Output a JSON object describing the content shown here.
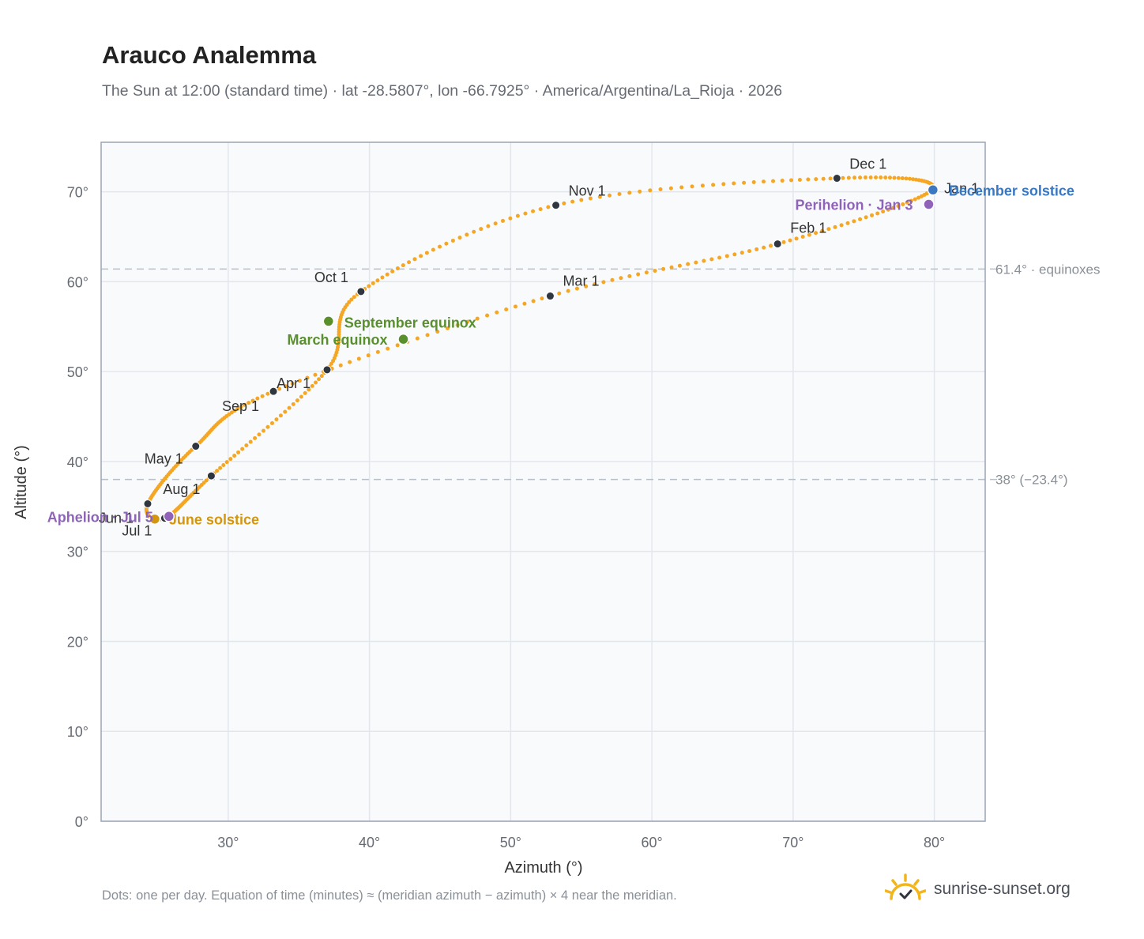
{
  "header": {
    "title": "Arauco Analemma",
    "subtitle": "The Sun at 12:00 (standard time) · lat -28.5807°, lon -66.7925° · America/Argentina/La_Rioja · 2026"
  },
  "footer": {
    "note": "Dots: one per day. Equation of time (minutes) ≈ (meridian azimuth − azimuth) × 4 near the meridian.",
    "brand": "sunrise-sunset.org",
    "brand_icon": "sun-logo-icon"
  },
  "colors": {
    "curve": "#f5a623",
    "month_dot": "#2f3640",
    "equinox": "#5a8f2e",
    "june_solstice": "#d4950f",
    "december_solstice": "#3a78c2",
    "apsis": "#8e63b8",
    "grid": "#e3e7ec",
    "plot_bg": "#f8fafc",
    "ref_line": "#b9c0c8"
  },
  "chart_data": {
    "type": "scatter",
    "xlabel": "Azimuth (°)",
    "ylabel": "Altitude (°)",
    "xlim": [
      21,
      83.6
    ],
    "ylim": [
      0,
      75.5
    ],
    "x_ticks": [
      30,
      40,
      50,
      60,
      70,
      80
    ],
    "y_ticks": [
      0,
      10,
      20,
      30,
      40,
      50,
      60,
      70
    ],
    "x_tick_labels": [
      "30°",
      "40°",
      "50°",
      "60°",
      "70°",
      "80°"
    ],
    "y_tick_labels": [
      "0°",
      "10°",
      "20°",
      "30°",
      "40°",
      "50°",
      "60°",
      "70°"
    ],
    "grid": true,
    "series_description_note": "",
    "months": [
      {
        "label": "Jan 1",
        "az": 79.8,
        "alt": 70.2
      },
      {
        "label": "Feb 1",
        "az": 68.9,
        "alt": 64.2
      },
      {
        "label": "Mar 1",
        "az": 52.8,
        "alt": 58.4
      },
      {
        "label": "Apr 1",
        "az": 33.2,
        "alt": 47.8
      },
      {
        "label": "May 1",
        "az": 27.7,
        "alt": 41.7
      },
      {
        "label": "Jun 1",
        "az": 24.3,
        "alt": 35.3
      },
      {
        "label": "Jul 1",
        "az": 25.5,
        "alt": 33.7
      },
      {
        "label": "Aug 1",
        "az": 28.8,
        "alt": 38.4
      },
      {
        "label": "Sep 1",
        "az": 37.0,
        "alt": 50.2
      },
      {
        "label": "Oct 1",
        "az": 39.4,
        "alt": 58.9
      },
      {
        "label": "Nov 1",
        "az": 53.2,
        "alt": 68.5
      },
      {
        "label": "Dec 1",
        "az": 73.1,
        "alt": 71.5
      }
    ],
    "events": [
      {
        "label": "March equinox",
        "az": 42.4,
        "alt": 53.6,
        "color_key": "equinox"
      },
      {
        "label": "September equinox",
        "az": 37.1,
        "alt": 55.6,
        "color_key": "equinox"
      },
      {
        "label": "June solstice",
        "az": 24.8,
        "alt": 33.6,
        "color_key": "june_solstice"
      },
      {
        "label": "December solstice",
        "az": 79.9,
        "alt": 70.2,
        "color_key": "december_solstice"
      },
      {
        "label": "Perihelion · Jan 3",
        "az": 79.6,
        "alt": 68.6,
        "color_key": "apsis"
      },
      {
        "label": "Aphelion · Jul 5",
        "az": 25.8,
        "alt": 33.9,
        "color_key": "apsis"
      }
    ],
    "reference_lines": [
      {
        "value": 61.4,
        "label": "61.4° · equinoxes"
      },
      {
        "value": 38.0,
        "label": "38° (−23.4°)"
      }
    ]
  }
}
